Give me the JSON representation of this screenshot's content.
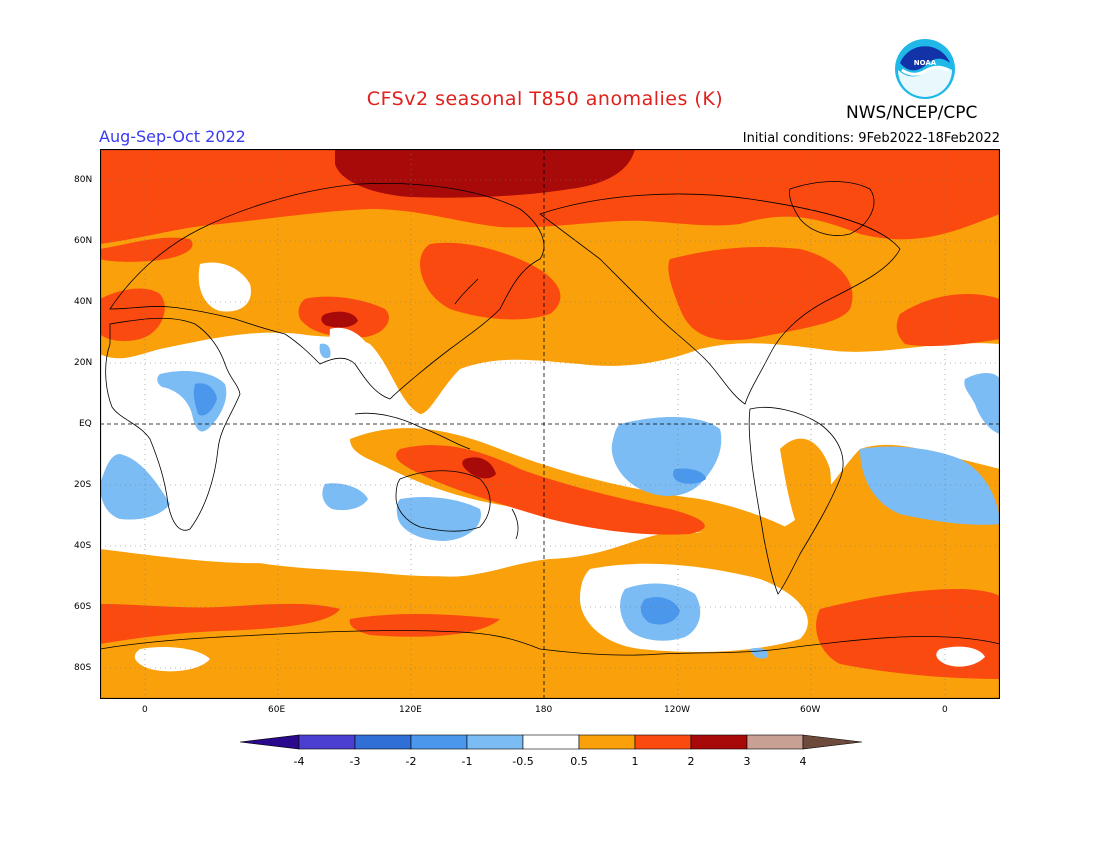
{
  "title": "CFSv2 seasonal T850 anomalies (K)",
  "period": "Aug-Sep-Oct 2022",
  "initial_conditions": "Initial conditions: 9Feb2022-18Feb2022",
  "agency": "NWS/NCEP/CPC",
  "logo_text": "NOAA",
  "lat_labels": [
    "80N",
    "60N",
    "40N",
    "20N",
    "EQ",
    "20S",
    "40S",
    "60S",
    "80S"
  ],
  "lon_labels": [
    "0",
    "60E",
    "120E",
    "180",
    "120W",
    "60W",
    "0"
  ],
  "colorbar": {
    "labels": [
      "-4",
      "-3",
      "-2",
      "-1",
      "-0.5",
      "0.5",
      "1",
      "2",
      "3",
      "4"
    ],
    "colors": [
      "#2a0a8c",
      "#4a3fd0",
      "#2f6fd6",
      "#4a97ec",
      "#7cbcf4",
      "#ffffff",
      "#f9a00a",
      "#fb4a10",
      "#a80a0a",
      "#c8a094",
      "#6e4a3c"
    ]
  },
  "map_colors": {
    "warm_1": "#f9a00a",
    "warm_2": "#fb4a10",
    "warm_3": "#a80a0a",
    "cool_1": "#7cbcf4",
    "cool_2": "#4a97ec",
    "neutral": "#ffffff"
  }
}
